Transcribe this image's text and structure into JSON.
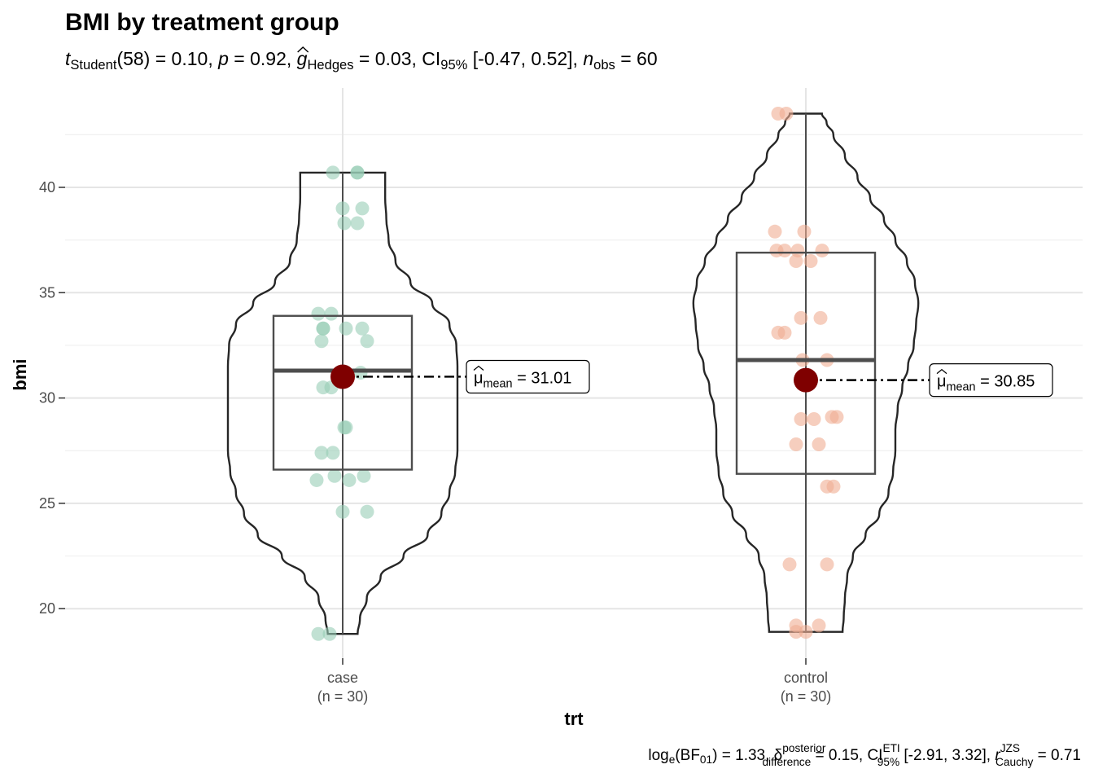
{
  "chart_data": {
    "type": "violin-box-scatter",
    "title": "BMI by treatment group",
    "subtitle": {
      "t_label": "t",
      "t_sub": "Student",
      "t_df": "(58) = 0.10, ",
      "p_label": "p",
      "p_val": " = 0.92, ",
      "g_label": "g",
      "g_sub": "Hedges",
      "g_val": " = 0.03, ",
      "ci_label": "CI",
      "ci_sub": "95%",
      "ci_val": " [-0.47, 0.52], ",
      "n_label": "n",
      "n_sub": "obs",
      "n_val": " = 60"
    },
    "caption": {
      "log_label": "log",
      "log_sub": "e",
      "bf_open": "(BF",
      "bf_sub": "01",
      "bf_val": ") = 1.33, ",
      "delta_label": "δ",
      "delta_sup": "posterior",
      "delta_sub": "difference",
      "delta_val": " = 0.15, ",
      "ci_label": "CI",
      "ci_sup": "ETI",
      "ci_sub": "95%",
      "ci_val": " [-2.91, 3.32], ",
      "r_label": "r",
      "r_sup": "JZS",
      "r_sub": "Cauchy",
      "r_val": " = 0.71"
    },
    "xlabel": "trt",
    "ylabel": "bmi",
    "ylim": [
      17.8,
      45.0
    ],
    "yticks": [
      20,
      25,
      30,
      35,
      40
    ],
    "categories": [
      "case",
      "control"
    ],
    "category_n": [
      "(n = 30)",
      "(n = 30)"
    ],
    "grid": true,
    "groups": [
      {
        "name": "case",
        "color": "#98cdb6",
        "mean": 31.01,
        "mean_label_mu": "μ",
        "mean_label_sub": "mean",
        "mean_label_val": " = 31.01",
        "box": {
          "q1": 26.6,
          "median": 31.3,
          "q3": 33.9,
          "whisker_low": 18.8,
          "whisker_high": 40.7
        },
        "violin": {
          "y": [
            18.8,
            19.5,
            20.5,
            21.5,
            22.5,
            23.5,
            24.5,
            25.5,
            26.5,
            27.5,
            28.5,
            29.5,
            30.5,
            31.5,
            32.5,
            33.5,
            34.5,
            35.5,
            36.5,
            37.5,
            38.5,
            39.5,
            40.2,
            40.7
          ],
          "width": [
            0.13,
            0.15,
            0.21,
            0.33,
            0.53,
            0.74,
            0.86,
            0.93,
            0.98,
            1.0,
            1.0,
            1.0,
            1.0,
            1.0,
            0.99,
            0.93,
            0.78,
            0.59,
            0.46,
            0.4,
            0.38,
            0.37,
            0.37,
            0.37
          ]
        },
        "points": [
          [
            18.8,
            -0.15
          ],
          [
            18.8,
            -0.08
          ],
          [
            24.6,
            0.0
          ],
          [
            24.6,
            0.15
          ],
          [
            26.1,
            -0.16
          ],
          [
            26.3,
            -0.05
          ],
          [
            26.1,
            0.04
          ],
          [
            26.3,
            0.13
          ],
          [
            27.4,
            -0.13
          ],
          [
            27.4,
            -0.06
          ],
          [
            28.6,
            0.01
          ],
          [
            28.6,
            0.02
          ],
          [
            30.5,
            -0.12
          ],
          [
            30.5,
            -0.07
          ],
          [
            31.2,
            0.11
          ],
          [
            32.7,
            -0.13
          ],
          [
            32.7,
            0.15
          ],
          [
            33.3,
            -0.12
          ],
          [
            33.3,
            -0.12
          ],
          [
            33.3,
            0.02
          ],
          [
            33.3,
            0.12
          ],
          [
            34.0,
            -0.15
          ],
          [
            34.0,
            -0.07
          ],
          [
            38.3,
            0.01
          ],
          [
            38.3,
            0.09
          ],
          [
            39.0,
            0.0
          ],
          [
            39.0,
            0.12
          ],
          [
            40.7,
            -0.06
          ],
          [
            40.7,
            0.09
          ],
          [
            40.7,
            0.09
          ]
        ]
      },
      {
        "name": "control",
        "color": "#f0ad92",
        "mean": 30.85,
        "mean_label_mu": "μ",
        "mean_label_sub": "mean",
        "mean_label_val": " = 30.85",
        "box": {
          "q1": 26.4,
          "median": 31.8,
          "q3": 36.9,
          "whisker_low": 18.9,
          "whisker_high": 43.5
        },
        "violin": {
          "y": [
            18.9,
            19.6,
            20.5,
            21.5,
            22.5,
            23.5,
            24.5,
            25.5,
            26.5,
            27.5,
            28.5,
            29.5,
            30.5,
            31.5,
            32.5,
            33.5,
            34.5,
            35.5,
            36.5,
            37.5,
            38.5,
            39.5,
            40.5,
            41.5,
            42.5,
            43.1,
            43.5
          ],
          "width": [
            0.32,
            0.33,
            0.34,
            0.36,
            0.41,
            0.52,
            0.64,
            0.72,
            0.76,
            0.78,
            0.78,
            0.8,
            0.84,
            0.89,
            0.94,
            0.96,
            0.98,
            0.95,
            0.88,
            0.78,
            0.68,
            0.56,
            0.45,
            0.34,
            0.24,
            0.18,
            0.14
          ]
        },
        "points": [
          [
            18.9,
            -0.06
          ],
          [
            19.2,
            -0.06
          ],
          [
            18.9,
            0.0
          ],
          [
            19.2,
            0.08
          ],
          [
            22.1,
            -0.1
          ],
          [
            22.1,
            0.13
          ],
          [
            25.8,
            0.13
          ],
          [
            25.8,
            0.17
          ],
          [
            27.8,
            -0.06
          ],
          [
            27.8,
            0.08
          ],
          [
            29.0,
            -0.03
          ],
          [
            29.0,
            0.05
          ],
          [
            29.1,
            0.16
          ],
          [
            29.1,
            0.19
          ],
          [
            31.8,
            -0.02
          ],
          [
            31.8,
            0.13
          ],
          [
            33.1,
            -0.17
          ],
          [
            33.1,
            -0.13
          ],
          [
            33.8,
            -0.03
          ],
          [
            33.8,
            0.09
          ],
          [
            36.5,
            -0.06
          ],
          [
            36.5,
            0.03
          ],
          [
            37.0,
            -0.18
          ],
          [
            37.0,
            -0.13
          ],
          [
            37.0,
            -0.05
          ],
          [
            37.0,
            0.1
          ],
          [
            37.9,
            -0.19
          ],
          [
            37.9,
            -0.01
          ],
          [
            43.5,
            -0.17
          ],
          [
            43.5,
            -0.12
          ]
        ]
      }
    ],
    "colors": {
      "mean_point": "#7f0000",
      "outline": "#262626",
      "box": "#4d4d4d",
      "grid_major": "#e5e5e5",
      "grid_minor": "#f0f0f0"
    }
  }
}
